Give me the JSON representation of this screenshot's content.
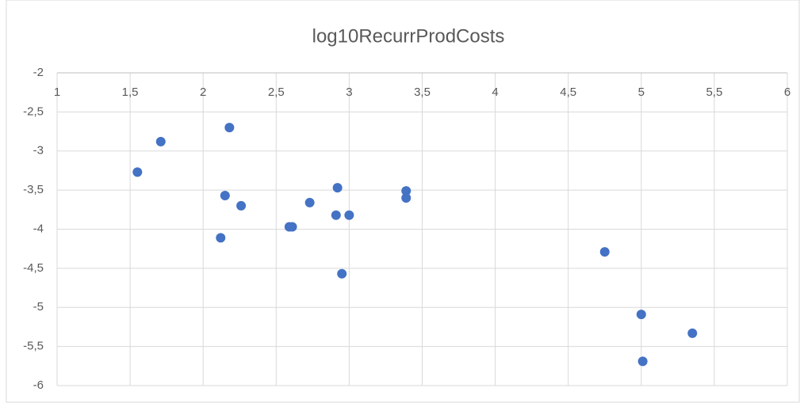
{
  "chart_data": {
    "type": "scatter",
    "title": "log10RecurrProdCosts",
    "series": [
      {
        "color": "#4472c4",
        "x": [
          1.55,
          1.71,
          2.18,
          2.15,
          2.12,
          2.26,
          2.59,
          2.61,
          2.73,
          2.92,
          2.91,
          3.0,
          2.95,
          3.39,
          3.39,
          4.75,
          5.0,
          5.01,
          5.35
        ],
        "values": [
          -3.27,
          -2.88,
          -2.7,
          -3.57,
          -4.11,
          -3.7,
          -3.97,
          -3.97,
          -3.66,
          -3.47,
          -3.82,
          -3.82,
          -4.57,
          -3.51,
          -3.6,
          -4.29,
          -5.09,
          -5.69,
          -5.33
        ]
      }
    ],
    "xlim": [
      1,
      6
    ],
    "xticks": [
      1,
      {
        "value": 1.5,
        "label": "1,5"
      },
      2,
      {
        "value": 2.5,
        "label": "2,5"
      },
      3,
      {
        "value": 3.5,
        "label": "3,5"
      },
      4,
      {
        "value": 4.5,
        "label": "4,5"
      },
      5,
      {
        "value": 5.5,
        "label": "5,5"
      },
      6
    ],
    "ylim": [
      -6,
      -2
    ],
    "yticks": [
      -2,
      {
        "value": -2.5,
        "label": "-2,5"
      },
      -3,
      {
        "value": -3.5,
        "label": "-3,5"
      },
      -4,
      {
        "value": -4.5,
        "label": "-4,5"
      },
      -5,
      {
        "value": -5.5,
        "label": "-5,5"
      },
      -6
    ],
    "grid": true
  }
}
